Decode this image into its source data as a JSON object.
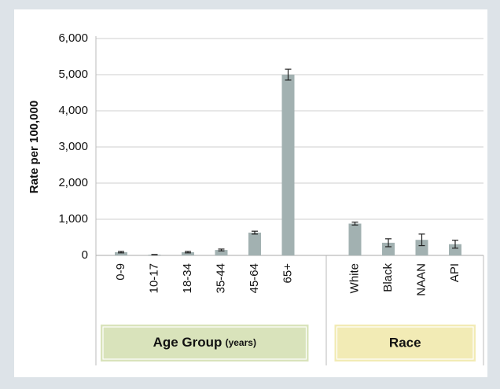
{
  "chart_data": {
    "type": "bar",
    "y_label": "Rate per 100,000",
    "categories": [
      "0-9",
      "10-17",
      "18-34",
      "35-44",
      "45-64",
      "65+",
      null,
      "White",
      "Black",
      "NAAN",
      "API"
    ],
    "values": [
      90,
      20,
      90,
      150,
      630,
      5000,
      null,
      880,
      350,
      430,
      310
    ],
    "errors": [
      20,
      5,
      20,
      25,
      40,
      150,
      null,
      40,
      110,
      160,
      110
    ],
    "color": "#a2b1b1",
    "ylim": [
      0,
      6000
    ],
    "yticks": [
      0,
      {
        "value": 1000,
        "label": "1,000"
      },
      {
        "value": 2000,
        "label": "2,000"
      },
      {
        "value": 3000,
        "label": "3,000"
      },
      {
        "value": 4000,
        "label": "4,000"
      },
      {
        "value": 5000,
        "label": "5,000"
      },
      {
        "value": 6000,
        "label": "6,000"
      }
    ],
    "grid": true,
    "groups": [
      {
        "label": "Age Group",
        "sublabel": "(years)",
        "color": "#d9e3bb"
      },
      {
        "label": "Race",
        "color": "#f2ebb5"
      }
    ]
  }
}
